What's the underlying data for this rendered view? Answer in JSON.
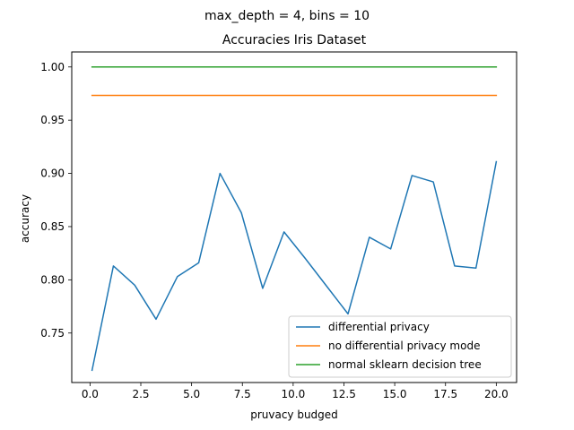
{
  "chart_data": {
    "type": "line",
    "suptitle": "max_depth = 4, bins = 10",
    "title": "Accuracies Iris Dataset",
    "xlabel": "pruvacy budged",
    "ylabel": "accuracy",
    "xlim": [
      -0.9,
      21.0
    ],
    "ylim": [
      0.7035,
      1.0141
    ],
    "xticks": [
      0.0,
      2.5,
      5.0,
      7.5,
      10.0,
      12.5,
      15.0,
      17.5,
      20.0
    ],
    "xtick_labels": [
      "0.0",
      "2.5",
      "5.0",
      "7.5",
      "10.0",
      "12.5",
      "15.0",
      "17.5",
      "20.0"
    ],
    "yticks": [
      0.75,
      0.8,
      0.85,
      0.9,
      0.95,
      1.0
    ],
    "ytick_labels": [
      "0.75",
      "0.80",
      "0.85",
      "0.90",
      "0.95",
      "1.00"
    ],
    "grid": false,
    "legend_position": "lower-right",
    "series": [
      {
        "name": "differential privacy",
        "color": "#1f77b4",
        "x": [
          0.1,
          1.15,
          2.2,
          3.25,
          4.3,
          5.35,
          6.4,
          7.45,
          8.5,
          9.55,
          10.6,
          11.65,
          12.7,
          13.75,
          14.8,
          15.85,
          16.9,
          17.95,
          19.0,
          20.0
        ],
        "y": [
          0.715,
          0.813,
          0.795,
          0.763,
          0.803,
          0.816,
          0.9,
          0.863,
          0.792,
          0.845,
          0.82,
          0.794,
          0.768,
          0.84,
          0.829,
          0.898,
          0.892,
          0.813,
          0.811,
          0.911
        ]
      },
      {
        "name": "no differential privacy mode",
        "color": "#ff7f0e",
        "x": [
          0.1,
          20.0
        ],
        "y": [
          0.9733,
          0.9733
        ]
      },
      {
        "name": "normal sklearn decision tree",
        "color": "#2ca02c",
        "x": [
          0.1,
          20.0
        ],
        "y": [
          1.0,
          1.0
        ]
      }
    ]
  }
}
